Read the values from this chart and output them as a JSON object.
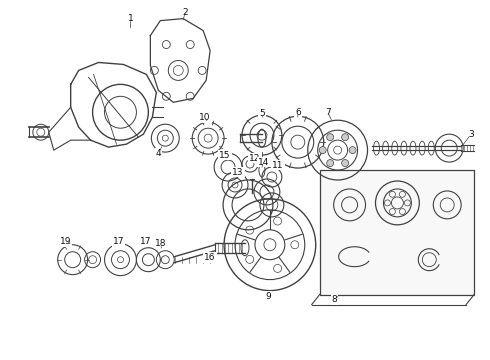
{
  "bg_color": "#ffffff",
  "line_color": "#404040",
  "label_color": "#111111",
  "fig_width": 4.9,
  "fig_height": 3.6,
  "dpi": 100
}
